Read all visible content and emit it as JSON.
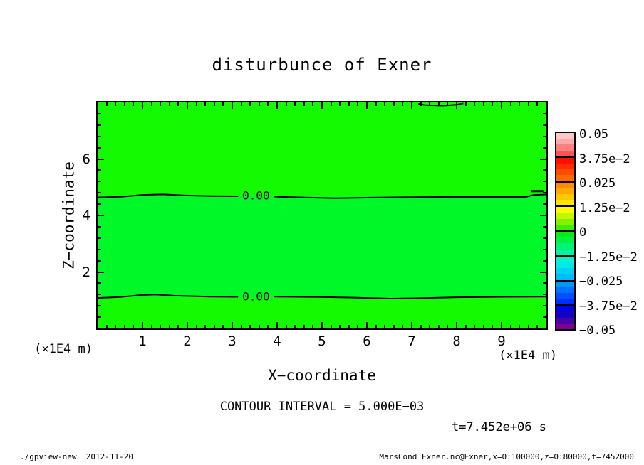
{
  "title": "disturbunce of Exner",
  "x_axis": {
    "label": "X−coordinate",
    "unit": "(×1E4 m)",
    "tick_labels": [
      "1",
      "2",
      "3",
      "4",
      "5",
      "6",
      "7",
      "8",
      "9"
    ]
  },
  "y_axis": {
    "label": "Z−coordinate",
    "unit": "(×1E4 m)",
    "tick_labels": [
      "2",
      "4",
      "6"
    ]
  },
  "contour_note": "CONTOUR INTERVAL = 5.000E−03",
  "time_label": "t=7.452e+06 s",
  "footer_left": "./gpview-new  2012-11-20",
  "footer_right": "MarsCond_Exner.nc@Exner,x=0:100000,z=0:80000,t=7452000",
  "colors": {
    "background": "#ffffff",
    "frame": "#000000",
    "contour_line": "#000000",
    "band_outer": "#14fa00",
    "band_inner": "#00f828"
  },
  "colorbar": {
    "labels": [
      "0.05",
      "3.75e−2",
      "0.025",
      "1.25e−2",
      "0",
      "−1.25e−2",
      "−0.025",
      "−3.75e−2",
      "−0.05"
    ],
    "boxes": [
      {
        "steps": [
          "#ffc8c8",
          "#ffa8a8",
          "#ff8080",
          "#ff5454"
        ]
      },
      {
        "steps": [
          "#ff0e00",
          "#ff2d00",
          "#ff4b00",
          "#ff6900"
        ]
      },
      {
        "steps": [
          "#ff8c00",
          "#ffaa00",
          "#ffc800",
          "#ffe600"
        ]
      },
      {
        "steps": [
          "#fdfc00",
          "#c3f600",
          "#82f200",
          "#3eee00"
        ]
      },
      {
        "steps": [
          "#00ee12",
          "#00f044",
          "#00f276",
          "#00f4a0"
        ]
      },
      {
        "steps": [
          "#00f4d2",
          "#00e9e9",
          "#00d2f2",
          "#00baff"
        ]
      },
      {
        "steps": [
          "#0096ff",
          "#0073ff",
          "#0050ff",
          "#002dff"
        ]
      },
      {
        "steps": [
          "#0000f0",
          "#1800c0",
          "#4800a8",
          "#800096"
        ]
      }
    ]
  },
  "chart_data": {
    "type": "heatmap",
    "subtype": "filled-contour",
    "title": "disturbunce of Exner",
    "xlabel": "X−coordinate",
    "ylabel": "Z−coordinate",
    "x_unit": "(×1E4 m)",
    "y_unit": "(×1E4 m)",
    "xlim": [
      0,
      10
    ],
    "ylim": [
      0,
      8
    ],
    "x_ticks": [
      1,
      2,
      3,
      4,
      5,
      6,
      7,
      8,
      9
    ],
    "x_minor_step": 0.2,
    "y_ticks": [
      2,
      4,
      6
    ],
    "y_minor_step": 0.4,
    "x_range_m": "0:100000",
    "z_range_m": "0:80000",
    "t_seconds": "7452000",
    "contour_interval": 0.005,
    "contour_label": "0.00",
    "colorbar_boundary_values": [
      0.05,
      0.0375,
      0.025,
      0.0125,
      0,
      -0.0125,
      -0.025,
      -0.0375,
      -0.05
    ],
    "legend_position": "right",
    "grid": false,
    "field_summary": "Exner-function disturbance is ~0 everywhere; two 0.00 contour lines cross the domain at z≈4.7e4 m and z≈1.1e4 m; values between the lines are infinitesimally below 0, outside slightly above 0.",
    "inner_band": {
      "top_frac": 0.414,
      "bottom_frac": 0.86
    },
    "zero_contour_segments": {
      "upper_left": [
        [
          0,
          0.42
        ],
        [
          0.055,
          0.417
        ],
        [
          0.1,
          0.409
        ],
        [
          0.145,
          0.407
        ],
        [
          0.19,
          0.411
        ],
        [
          0.25,
          0.414
        ],
        [
          0.313,
          0.415
        ]
      ],
      "upper_right": [
        [
          0.394,
          0.417
        ],
        [
          0.47,
          0.421
        ],
        [
          0.53,
          0.424
        ],
        [
          0.61,
          0.421
        ],
        [
          0.7,
          0.419
        ],
        [
          0.8,
          0.418
        ],
        [
          0.89,
          0.418
        ],
        [
          0.955,
          0.418
        ],
        [
          0.97,
          0.41
        ],
        [
          1,
          0.407
        ]
      ],
      "lower_left": [
        [
          0,
          0.865
        ],
        [
          0.05,
          0.861
        ],
        [
          0.1,
          0.852
        ],
        [
          0.13,
          0.85
        ],
        [
          0.17,
          0.855
        ],
        [
          0.25,
          0.859
        ],
        [
          0.313,
          0.86
        ]
      ],
      "lower_right": [
        [
          0.394,
          0.859
        ],
        [
          0.5,
          0.861
        ],
        [
          0.58,
          0.864
        ],
        [
          0.655,
          0.868
        ],
        [
          0.72,
          0.866
        ],
        [
          0.8,
          0.862
        ],
        [
          0.9,
          0.86
        ],
        [
          1,
          0.859
        ]
      ],
      "top_edge": [
        [
          0.715,
          0.006
        ],
        [
          0.73,
          0.012
        ],
        [
          0.77,
          0.014
        ],
        [
          0.8,
          0.01
        ],
        [
          0.815,
          0.004
        ]
      ],
      "right_dash": [
        [
          0.965,
          0.392
        ],
        [
          0.993,
          0.392
        ]
      ]
    },
    "label_positions": {
      "contour_label_x_frac": 0.353,
      "upper_y_frac": 0.413,
      "lower_y_frac": 0.859
    }
  }
}
